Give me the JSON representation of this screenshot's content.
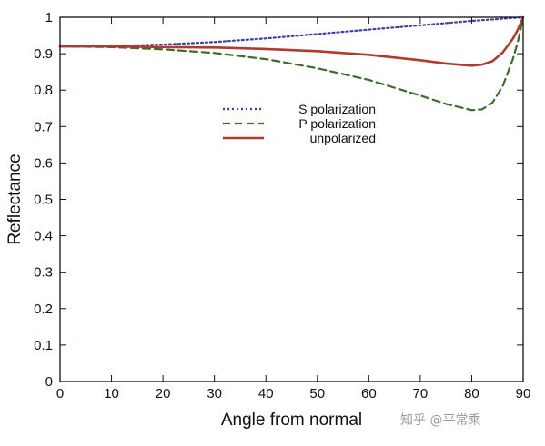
{
  "watermark": "知乎 @平常乘",
  "chart_data": {
    "type": "line",
    "title": "",
    "xlabel": "Angle from normal",
    "ylabel": "Reflectance",
    "xlim": [
      0,
      90
    ],
    "ylim": [
      0,
      1
    ],
    "xticks": [
      "0",
      "10",
      "20",
      "30",
      "40",
      "50",
      "60",
      "70",
      "80",
      "90"
    ],
    "yticks": [
      "0",
      "0.1",
      "0.2",
      "0.3",
      "0.4",
      "0.5",
      "0.6",
      "0.7",
      "0.8",
      "0.9",
      "1"
    ],
    "grid": false,
    "legend_position": "center-top",
    "x": [
      0,
      10,
      20,
      30,
      40,
      50,
      60,
      70,
      75,
      80,
      82,
      84,
      86,
      88,
      89,
      90
    ],
    "series": [
      {
        "name": "S polarization",
        "style": "dotted",
        "color": "#3a3fb0",
        "values": [
          0.92,
          0.921,
          0.925,
          0.932,
          0.942,
          0.954,
          0.966,
          0.978,
          0.984,
          0.99,
          0.992,
          0.994,
          0.996,
          0.998,
          0.999,
          1.0
        ]
      },
      {
        "name": "P polarization",
        "style": "dashed",
        "color": "#3c6b2a",
        "values": [
          0.92,
          0.918,
          0.912,
          0.902,
          0.885,
          0.86,
          0.828,
          0.785,
          0.762,
          0.745,
          0.747,
          0.765,
          0.81,
          0.885,
          0.935,
          1.0
        ]
      },
      {
        "name": "unpolarized",
        "style": "solid",
        "color": "#b03a2e",
        "values": [
          0.92,
          0.92,
          0.918,
          0.917,
          0.913,
          0.907,
          0.897,
          0.882,
          0.873,
          0.867,
          0.87,
          0.879,
          0.903,
          0.941,
          0.967,
          1.0
        ]
      }
    ]
  }
}
